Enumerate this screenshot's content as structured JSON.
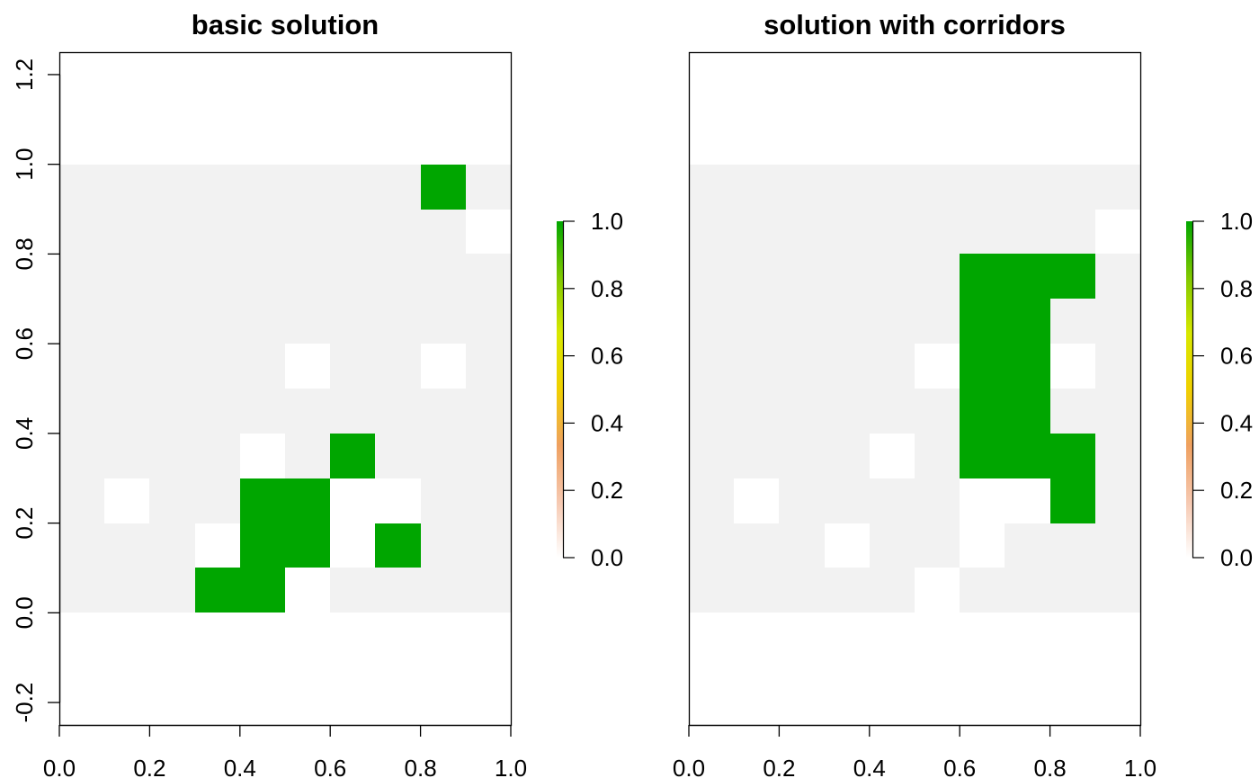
{
  "chart_data": [
    {
      "type": "heatmap",
      "title": "basic solution",
      "xlabel": "",
      "ylabel": "",
      "xlim": [
        0,
        1
      ],
      "ylim": [
        -0.25,
        1.25
      ],
      "x_ticks": [
        "0.0",
        "0.2",
        "0.4",
        "0.6",
        "0.8",
        "1.0"
      ],
      "y_ticks": [
        "-0.2",
        "0.0",
        "0.2",
        "0.4",
        "0.6",
        "0.8",
        "1.0",
        "1.2"
      ],
      "grid": false,
      "legend": {
        "position": "right",
        "ticks": [
          "0.0",
          "0.2",
          "0.4",
          "0.6",
          "0.8",
          "1.0"
        ]
      },
      "cell_size": 0.1,
      "grid_cells": {
        "x_range": [
          0,
          1
        ],
        "y_range": [
          0,
          1
        ],
        "rows_top_to_bottom": [
          [
            0,
            0,
            0,
            0,
            0,
            0,
            0,
            0,
            1,
            0
          ],
          [
            0,
            0,
            0,
            0,
            0,
            0,
            0,
            0,
            0,
            null
          ],
          [
            0,
            0,
            0,
            0,
            0,
            0,
            0,
            0,
            0,
            0
          ],
          [
            0,
            0,
            0,
            0,
            0,
            0,
            0,
            0,
            0,
            0
          ],
          [
            0,
            0,
            0,
            0,
            0,
            null,
            0,
            0,
            null,
            0
          ],
          [
            0,
            0,
            0,
            0,
            0,
            0,
            0,
            0,
            0,
            0
          ],
          [
            0,
            0,
            0,
            0,
            null,
            0,
            1,
            0,
            0,
            0
          ],
          [
            0,
            null,
            0,
            0,
            1,
            1,
            null,
            null,
            0,
            0
          ],
          [
            0,
            0,
            0,
            null,
            1,
            1,
            null,
            1,
            0,
            0
          ],
          [
            0,
            0,
            0,
            1,
            1,
            null,
            0,
            0,
            0,
            0
          ]
        ]
      }
    },
    {
      "type": "heatmap",
      "title": "solution with corridors",
      "xlabel": "",
      "ylabel": "",
      "xlim": [
        0,
        1
      ],
      "ylim": [
        -0.25,
        1.25
      ],
      "x_ticks": [
        "0.0",
        "0.2",
        "0.4",
        "0.6",
        "0.8",
        "1.0"
      ],
      "y_ticks": [],
      "grid": false,
      "legend": {
        "position": "right",
        "ticks": [
          "0.0",
          "0.2",
          "0.4",
          "0.6",
          "0.8",
          "1.0"
        ]
      },
      "cell_size": 0.1,
      "grid_cells": {
        "x_range": [
          0,
          1
        ],
        "y_range": [
          0,
          1
        ],
        "rows_top_to_bottom": [
          [
            0,
            0,
            0,
            0,
            0,
            0,
            0,
            0,
            0,
            0
          ],
          [
            0,
            0,
            0,
            0,
            0,
            0,
            0,
            0,
            0,
            null
          ],
          [
            0,
            0,
            0,
            0,
            0,
            0,
            1,
            1,
            1,
            0
          ],
          [
            0,
            0,
            0,
            0,
            0,
            0,
            1,
            1,
            0,
            0
          ],
          [
            0,
            0,
            0,
            0,
            0,
            null,
            1,
            1,
            null,
            0
          ],
          [
            0,
            0,
            0,
            0,
            0,
            0,
            1,
            1,
            0,
            0
          ],
          [
            0,
            0,
            0,
            0,
            null,
            0,
            1,
            1,
            1,
            0
          ],
          [
            0,
            null,
            0,
            0,
            0,
            0,
            null,
            null,
            1,
            0
          ],
          [
            0,
            0,
            0,
            null,
            0,
            0,
            null,
            0,
            0,
            0
          ],
          [
            0,
            0,
            0,
            0,
            0,
            null,
            0,
            0,
            0,
            0
          ]
        ]
      }
    }
  ],
  "colors": {
    "selected": "#00a600",
    "not_selected": "#f2f2f2",
    "na": "#ffffff",
    "gradient": [
      "#ffffff",
      "#f6c8b0",
      "#efa060",
      "#f0d000",
      "#d8e800",
      "#80c800",
      "#00a600"
    ],
    "axis": "#000000"
  }
}
